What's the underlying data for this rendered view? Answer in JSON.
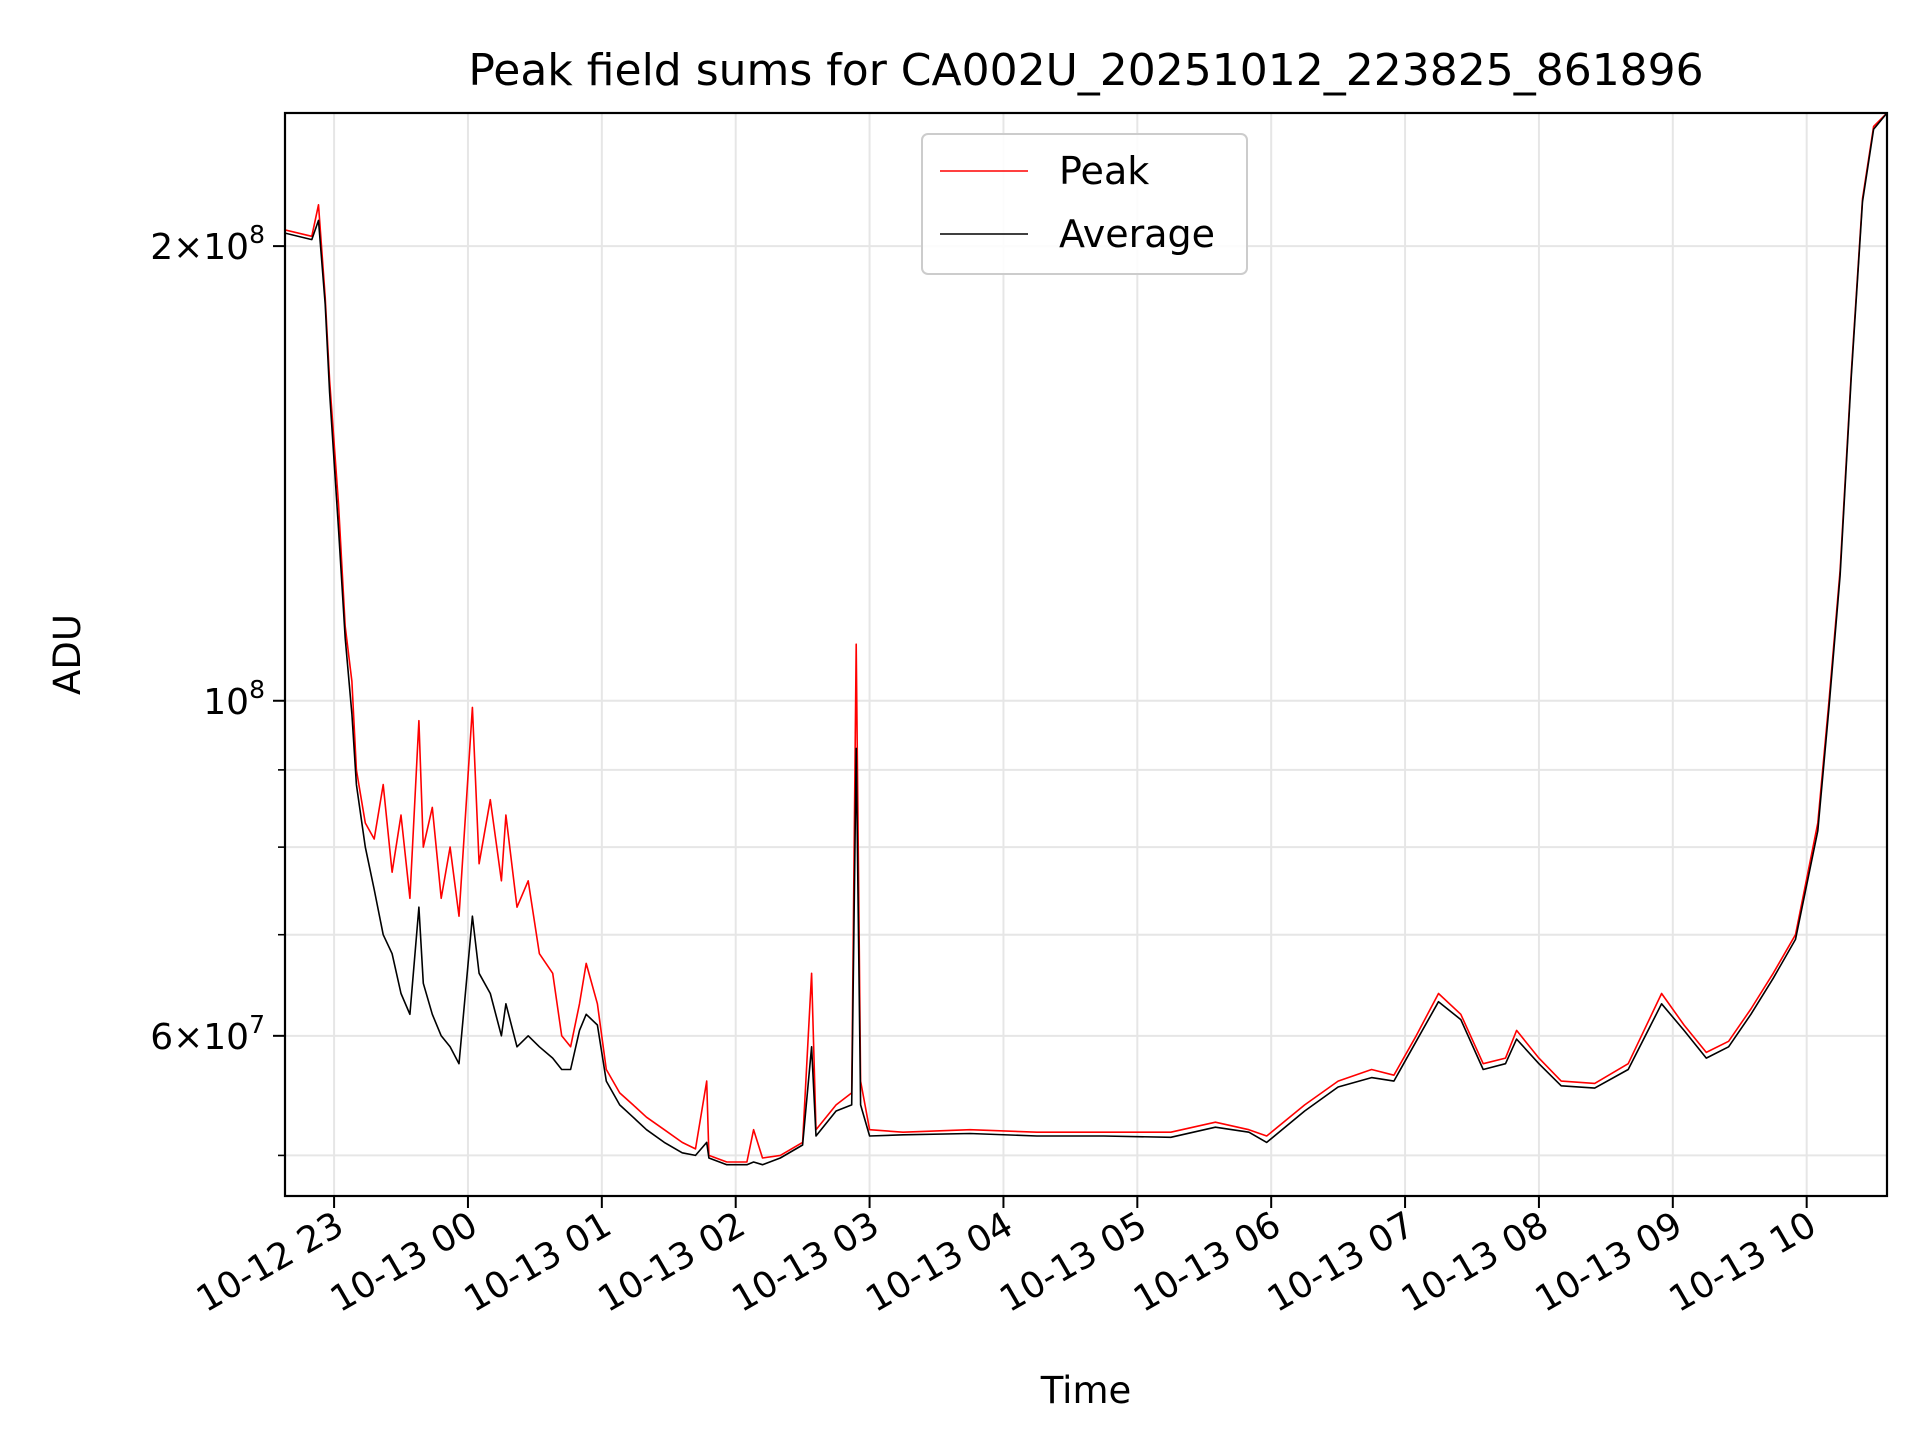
{
  "chart_data": {
    "type": "line",
    "title": "Peak field sums for CA002U_20251012_223825_861896",
    "xlabel": "Time",
    "ylabel": "ADU",
    "yscale": "log",
    "xlim": [
      "2025-10-12 22:38",
      "2025-10-13 10:36"
    ],
    "ylim": [
      47000000,
      245000000
    ],
    "grid": true,
    "legend_position": "upper center",
    "x_ticks": [
      {
        "t": "2025-10-12 23:00",
        "label": "10-12 23"
      },
      {
        "t": "2025-10-13 00:00",
        "label": "10-13 00"
      },
      {
        "t": "2025-10-13 01:00",
        "label": "10-13 01"
      },
      {
        "t": "2025-10-13 02:00",
        "label": "10-13 02"
      },
      {
        "t": "2025-10-13 03:00",
        "label": "10-13 03"
      },
      {
        "t": "2025-10-13 04:00",
        "label": "10-13 04"
      },
      {
        "t": "2025-10-13 05:00",
        "label": "10-13 05"
      },
      {
        "t": "2025-10-13 06:00",
        "label": "10-13 06"
      },
      {
        "t": "2025-10-13 07:00",
        "label": "10-13 07"
      },
      {
        "t": "2025-10-13 08:00",
        "label": "10-13 08"
      },
      {
        "t": "2025-10-13 09:00",
        "label": "10-13 09"
      },
      {
        "t": "2025-10-13 10:00",
        "label": "10-13 10"
      }
    ],
    "y_major_ticks": [
      {
        "value": 200000000,
        "mantissa": "2",
        "exp": "8"
      },
      {
        "value": 100000000,
        "mantissa": "",
        "exp": "8"
      },
      {
        "value": 60000000,
        "mantissa": "6",
        "exp": "7"
      }
    ],
    "y_minor_ticks": [
      50000000,
      70000000,
      80000000,
      90000000
    ],
    "series": [
      {
        "name": "Peak",
        "color": "#ff0000",
        "points": [
          [
            "2025-10-12 22:38",
            205000000
          ],
          [
            "2025-10-12 22:50",
            203000000
          ],
          [
            "2025-10-12 22:53",
            213000000
          ],
          [
            "2025-10-12 22:56",
            185000000
          ],
          [
            "2025-10-12 22:58",
            163000000
          ],
          [
            "2025-10-12 23:02",
            135000000
          ],
          [
            "2025-10-12 23:05",
            112000000
          ],
          [
            "2025-10-12 23:08",
            103000000
          ],
          [
            "2025-10-12 23:10",
            90000000
          ],
          [
            "2025-10-12 23:14",
            83000000
          ],
          [
            "2025-10-12 23:18",
            81000000
          ],
          [
            "2025-10-12 23:22",
            88000000
          ],
          [
            "2025-10-12 23:26",
            77000000
          ],
          [
            "2025-10-12 23:30",
            84000000
          ],
          [
            "2025-10-12 23:34",
            74000000
          ],
          [
            "2025-10-12 23:38",
            97000000
          ],
          [
            "2025-10-12 23:40",
            80000000
          ],
          [
            "2025-10-12 23:44",
            85000000
          ],
          [
            "2025-10-12 23:48",
            74000000
          ],
          [
            "2025-10-12 23:52",
            80000000
          ],
          [
            "2025-10-12 23:56",
            72000000
          ],
          [
            "2025-10-13 00:02",
            99000000
          ],
          [
            "2025-10-13 00:05",
            78000000
          ],
          [
            "2025-10-13 00:10",
            86000000
          ],
          [
            "2025-10-13 00:15",
            76000000
          ],
          [
            "2025-10-13 00:17",
            84000000
          ],
          [
            "2025-10-13 00:22",
            73000000
          ],
          [
            "2025-10-13 00:27",
            76000000
          ],
          [
            "2025-10-13 00:32",
            68000000
          ],
          [
            "2025-10-13 00:38",
            66000000
          ],
          [
            "2025-10-13 00:42",
            60000000
          ],
          [
            "2025-10-13 00:46",
            59000000
          ],
          [
            "2025-10-13 00:50",
            63000000
          ],
          [
            "2025-10-13 00:53",
            67000000
          ],
          [
            "2025-10-13 00:58",
            63000000
          ],
          [
            "2025-10-13 01:02",
            57000000
          ],
          [
            "2025-10-13 01:08",
            55000000
          ],
          [
            "2025-10-13 01:14",
            54000000
          ],
          [
            "2025-10-13 01:20",
            53000000
          ],
          [
            "2025-10-13 01:28",
            52000000
          ],
          [
            "2025-10-13 01:36",
            51000000
          ],
          [
            "2025-10-13 01:42",
            50500000
          ],
          [
            "2025-10-13 01:47",
            56000000
          ],
          [
            "2025-10-13 01:48",
            50000000
          ],
          [
            "2025-10-13 01:56",
            49500000
          ],
          [
            "2025-10-13 02:05",
            49500000
          ],
          [
            "2025-10-13 02:08",
            52000000
          ],
          [
            "2025-10-13 02:12",
            49800000
          ],
          [
            "2025-10-13 02:20",
            50000000
          ],
          [
            "2025-10-13 02:30",
            51000000
          ],
          [
            "2025-10-13 02:34",
            66000000
          ],
          [
            "2025-10-13 02:36",
            52000000
          ],
          [
            "2025-10-13 02:45",
            54000000
          ],
          [
            "2025-10-13 02:52",
            55000000
          ],
          [
            "2025-10-13 02:54",
            109000000
          ],
          [
            "2025-10-13 02:56",
            56000000
          ],
          [
            "2025-10-13 03:00",
            52000000
          ],
          [
            "2025-10-13 03:15",
            51800000
          ],
          [
            "2025-10-13 03:45",
            52000000
          ],
          [
            "2025-10-13 04:15",
            51800000
          ],
          [
            "2025-10-13 04:45",
            51800000
          ],
          [
            "2025-10-13 05:15",
            51800000
          ],
          [
            "2025-10-13 05:35",
            52600000
          ],
          [
            "2025-10-13 05:50",
            52000000
          ],
          [
            "2025-10-13 05:58",
            51500000
          ],
          [
            "2025-10-13 06:15",
            54000000
          ],
          [
            "2025-10-13 06:30",
            56000000
          ],
          [
            "2025-10-13 06:45",
            57000000
          ],
          [
            "2025-10-13 06:55",
            56500000
          ],
          [
            "2025-10-13 07:05",
            60000000
          ],
          [
            "2025-10-13 07:15",
            64000000
          ],
          [
            "2025-10-13 07:25",
            62000000
          ],
          [
            "2025-10-13 07:35",
            57500000
          ],
          [
            "2025-10-13 07:45",
            58000000
          ],
          [
            "2025-10-13 07:50",
            60500000
          ],
          [
            "2025-10-13 08:00",
            58000000
          ],
          [
            "2025-10-13 08:10",
            56000000
          ],
          [
            "2025-10-13 08:25",
            55800000
          ],
          [
            "2025-10-13 08:40",
            57500000
          ],
          [
            "2025-10-13 08:55",
            64000000
          ],
          [
            "2025-10-13 09:05",
            61000000
          ],
          [
            "2025-10-13 09:15",
            58500000
          ],
          [
            "2025-10-13 09:25",
            59500000
          ],
          [
            "2025-10-13 09:35",
            62500000
          ],
          [
            "2025-10-13 09:45",
            66000000
          ],
          [
            "2025-10-13 09:55",
            70000000
          ],
          [
            "2025-10-13 10:05",
            83000000
          ],
          [
            "2025-10-13 10:10",
            100000000
          ],
          [
            "2025-10-13 10:15",
            122000000
          ],
          [
            "2025-10-13 10:20",
            165000000
          ],
          [
            "2025-10-13 10:25",
            215000000
          ],
          [
            "2025-10-13 10:30",
            240000000
          ],
          [
            "2025-10-13 10:36",
            245000000
          ]
        ]
      },
      {
        "name": "Average",
        "color": "#000000",
        "points": [
          [
            "2025-10-12 22:38",
            204000000
          ],
          [
            "2025-10-12 22:50",
            202000000
          ],
          [
            "2025-10-12 22:53",
            208000000
          ],
          [
            "2025-10-12 22:56",
            183000000
          ],
          [
            "2025-10-12 22:58",
            160000000
          ],
          [
            "2025-10-12 23:02",
            130000000
          ],
          [
            "2025-10-12 23:05",
            110000000
          ],
          [
            "2025-10-12 23:08",
            98000000
          ],
          [
            "2025-10-12 23:10",
            88000000
          ],
          [
            "2025-10-12 23:14",
            80000000
          ],
          [
            "2025-10-12 23:18",
            75000000
          ],
          [
            "2025-10-12 23:22",
            70000000
          ],
          [
            "2025-10-12 23:26",
            68000000
          ],
          [
            "2025-10-12 23:30",
            64000000
          ],
          [
            "2025-10-12 23:34",
            62000000
          ],
          [
            "2025-10-12 23:38",
            73000000
          ],
          [
            "2025-10-12 23:40",
            65000000
          ],
          [
            "2025-10-12 23:44",
            62000000
          ],
          [
            "2025-10-12 23:48",
            60000000
          ],
          [
            "2025-10-12 23:52",
            59000000
          ],
          [
            "2025-10-12 23:56",
            57500000
          ],
          [
            "2025-10-13 00:02",
            72000000
          ],
          [
            "2025-10-13 00:05",
            66000000
          ],
          [
            "2025-10-13 00:10",
            64000000
          ],
          [
            "2025-10-13 00:15",
            60000000
          ],
          [
            "2025-10-13 00:17",
            63000000
          ],
          [
            "2025-10-13 00:22",
            59000000
          ],
          [
            "2025-10-13 00:27",
            60000000
          ],
          [
            "2025-10-13 00:32",
            59000000
          ],
          [
            "2025-10-13 00:38",
            58000000
          ],
          [
            "2025-10-13 00:42",
            57000000
          ],
          [
            "2025-10-13 00:46",
            57000000
          ],
          [
            "2025-10-13 00:50",
            60500000
          ],
          [
            "2025-10-13 00:53",
            62000000
          ],
          [
            "2025-10-13 00:58",
            61000000
          ],
          [
            "2025-10-13 01:02",
            56000000
          ],
          [
            "2025-10-13 01:08",
            54000000
          ],
          [
            "2025-10-13 01:14",
            53000000
          ],
          [
            "2025-10-13 01:20",
            52000000
          ],
          [
            "2025-10-13 01:28",
            51000000
          ],
          [
            "2025-10-13 01:36",
            50200000
          ],
          [
            "2025-10-13 01:42",
            50000000
          ],
          [
            "2025-10-13 01:47",
            51000000
          ],
          [
            "2025-10-13 01:48",
            49800000
          ],
          [
            "2025-10-13 01:56",
            49300000
          ],
          [
            "2025-10-13 02:05",
            49300000
          ],
          [
            "2025-10-13 02:08",
            49500000
          ],
          [
            "2025-10-13 02:12",
            49300000
          ],
          [
            "2025-10-13 02:20",
            49800000
          ],
          [
            "2025-10-13 02:30",
            50800000
          ],
          [
            "2025-10-13 02:34",
            59000000
          ],
          [
            "2025-10-13 02:36",
            51500000
          ],
          [
            "2025-10-13 02:45",
            53500000
          ],
          [
            "2025-10-13 02:52",
            54000000
          ],
          [
            "2025-10-13 02:54",
            93000000
          ],
          [
            "2025-10-13 02:56",
            54000000
          ],
          [
            "2025-10-13 03:00",
            51500000
          ],
          [
            "2025-10-13 03:15",
            51600000
          ],
          [
            "2025-10-13 03:45",
            51700000
          ],
          [
            "2025-10-13 04:15",
            51500000
          ],
          [
            "2025-10-13 04:45",
            51500000
          ],
          [
            "2025-10-13 05:15",
            51400000
          ],
          [
            "2025-10-13 05:35",
            52200000
          ],
          [
            "2025-10-13 05:50",
            51800000
          ],
          [
            "2025-10-13 05:58",
            51000000
          ],
          [
            "2025-10-13 06:15",
            53500000
          ],
          [
            "2025-10-13 06:30",
            55500000
          ],
          [
            "2025-10-13 06:45",
            56300000
          ],
          [
            "2025-10-13 06:55",
            56000000
          ],
          [
            "2025-10-13 07:05",
            59500000
          ],
          [
            "2025-10-13 07:15",
            63200000
          ],
          [
            "2025-10-13 07:25",
            61500000
          ],
          [
            "2025-10-13 07:35",
            57000000
          ],
          [
            "2025-10-13 07:45",
            57500000
          ],
          [
            "2025-10-13 07:50",
            59700000
          ],
          [
            "2025-10-13 08:00",
            57500000
          ],
          [
            "2025-10-13 08:10",
            55600000
          ],
          [
            "2025-10-13 08:25",
            55400000
          ],
          [
            "2025-10-13 08:40",
            57000000
          ],
          [
            "2025-10-13 08:55",
            63000000
          ],
          [
            "2025-10-13 09:05",
            60500000
          ],
          [
            "2025-10-13 09:15",
            58000000
          ],
          [
            "2025-10-13 09:25",
            59000000
          ],
          [
            "2025-10-13 09:35",
            62000000
          ],
          [
            "2025-10-13 09:45",
            65500000
          ],
          [
            "2025-10-13 09:55",
            69500000
          ],
          [
            "2025-10-13 10:05",
            82000000
          ],
          [
            "2025-10-13 10:10",
            99000000
          ],
          [
            "2025-10-13 10:15",
            121000000
          ],
          [
            "2025-10-13 10:20",
            164000000
          ],
          [
            "2025-10-13 10:25",
            214000000
          ],
          [
            "2025-10-13 10:30",
            239000000
          ],
          [
            "2025-10-13 10:36",
            245000000
          ]
        ]
      }
    ]
  }
}
